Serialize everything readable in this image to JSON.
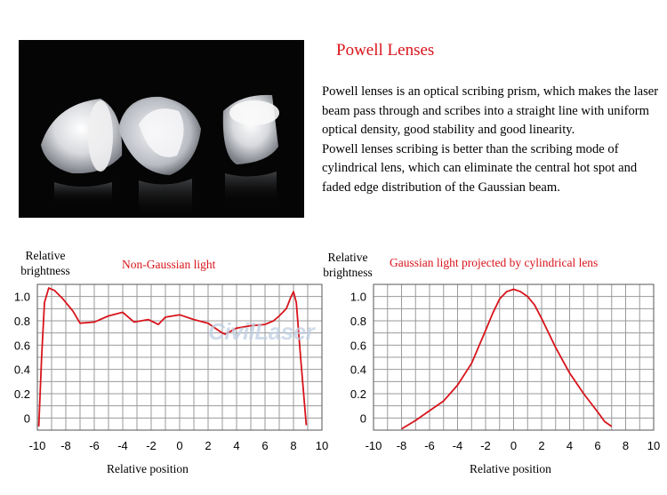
{
  "title": "Powell Lenses",
  "description": [
    "Powell lenses is an optical scribing prism, which makes the laser beam pass through and scribes into a straight line with uniform optical density, good stability and good linearity.",
    "Powell lenses scribing is better than the scribing mode of cylindrical lens, which can eliminate the central hot spot and faded edge distribution of the Gaussian beam."
  ],
  "watermark": "CivilLaser",
  "colors": {
    "accent": "#d8141b",
    "grid": "#9a9a9a",
    "background": "#ffffff"
  },
  "chart_data": [
    {
      "type": "line",
      "title": "Non-Gaussian light",
      "xlabel": "Relative position",
      "ylabel": "Relative brightness",
      "xlim": [
        -10,
        10
      ],
      "ylim": [
        -0.1,
        1.1
      ],
      "xticks": [
        -10,
        -8,
        -6,
        -4,
        -2,
        0,
        2,
        4,
        6,
        8,
        10
      ],
      "yticks": [
        0,
        0.2,
        0.4,
        0.6,
        0.8,
        1.0
      ],
      "xtick_labels": [
        "-10",
        "-8",
        "-6",
        "-4",
        "-2",
        "0",
        "2",
        "4",
        "6",
        "8",
        "10"
      ],
      "ytick_labels": [
        "0",
        "0.2",
        "0.4",
        "0.6",
        "0.8",
        "1.0"
      ],
      "grid": true,
      "series": [
        {
          "color": "#d8141b",
          "x": [
            -9.9,
            -9.7,
            -9.5,
            -9.2,
            -8.8,
            -8.2,
            -7.5,
            -7.0,
            -6.0,
            -5.0,
            -4.0,
            -3.2,
            -2.2,
            -1.5,
            -1.0,
            0.0,
            1.0,
            2.0,
            3.0,
            3.2,
            4.0,
            5.0,
            6.0,
            6.6,
            7.0,
            7.5,
            7.8,
            8.0,
            8.2,
            8.5,
            8.9
          ],
          "y": [
            -0.07,
            0.5,
            0.95,
            1.07,
            1.05,
            0.98,
            0.88,
            0.78,
            0.79,
            0.84,
            0.87,
            0.79,
            0.81,
            0.77,
            0.83,
            0.85,
            0.81,
            0.78,
            0.7,
            0.69,
            0.74,
            0.76,
            0.77,
            0.8,
            0.84,
            0.9,
            0.99,
            1.04,
            0.95,
            0.5,
            -0.06
          ]
        }
      ]
    },
    {
      "type": "line",
      "title": "Gaussian light projected by cylindrical lens",
      "xlabel": "Relative position",
      "ylabel": "Relative brightness",
      "xlim": [
        -10,
        10
      ],
      "ylim": [
        -0.1,
        1.1
      ],
      "xticks": [
        -10,
        -8,
        -6,
        -4,
        -2,
        0,
        2,
        4,
        6,
        8,
        10
      ],
      "yticks": [
        0,
        0.2,
        0.4,
        0.6,
        0.8,
        1.0
      ],
      "xtick_labels": [
        "-10",
        "-8",
        "-6",
        "-4",
        "-2",
        "0",
        "2",
        "4",
        "6",
        "8",
        "10"
      ],
      "ytick_labels": [
        "0",
        "0.2",
        "0.4",
        "0.6",
        "0.8",
        "1.0"
      ],
      "grid": true,
      "series": [
        {
          "color": "#d8141b",
          "x": [
            -8.0,
            -7.0,
            -6.0,
            -5.0,
            -4.0,
            -3.0,
            -2.0,
            -1.5,
            -1.0,
            -0.5,
            0.0,
            0.5,
            1.0,
            1.5,
            2.0,
            3.0,
            4.0,
            5.0,
            6.0,
            6.5,
            7.0
          ],
          "y": [
            -0.09,
            -0.02,
            0.06,
            0.14,
            0.27,
            0.45,
            0.72,
            0.86,
            0.98,
            1.04,
            1.06,
            1.04,
            1.0,
            0.93,
            0.82,
            0.58,
            0.37,
            0.2,
            0.05,
            -0.03,
            -0.07
          ]
        }
      ]
    }
  ]
}
